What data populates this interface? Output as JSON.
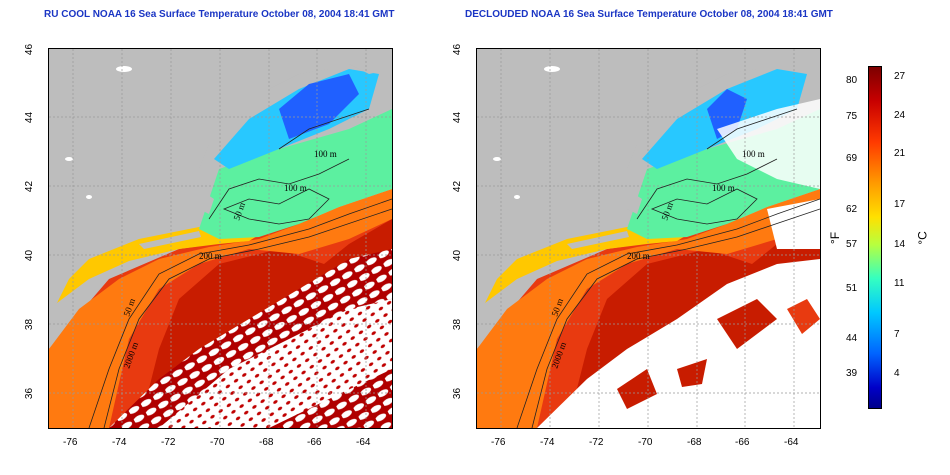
{
  "left_panel": {
    "title": "RU COOL NOAA 16 Sea Surface Temperature October 08, 2004 18:41 GMT",
    "contour_labels": [
      "100 m",
      "100 m",
      "50 m",
      "200 m",
      "50 m",
      "2000 m"
    ]
  },
  "right_panel": {
    "title": "DECLOUDED NOAA 16 Sea Surface Temperature October 08, 2004 18:41 GMT",
    "contour_labels": [
      "100 m",
      "100 m",
      "50 m",
      "200 m",
      "50 m",
      "2000 m"
    ]
  },
  "axes": {
    "lon_ticks": [
      "-76",
      "-74",
      "-72",
      "-70",
      "-68",
      "-66",
      "-64"
    ],
    "lat_ticks": [
      "46",
      "44",
      "42",
      "40",
      "38",
      "36"
    ]
  },
  "colorbar": {
    "fahrenheit_ticks": [
      "80",
      "75",
      "69",
      "62",
      "57",
      "51",
      "44",
      "39"
    ],
    "celsius_ticks": [
      "27",
      "24",
      "21",
      "17",
      "14",
      "11",
      "7",
      "4"
    ],
    "unit_f": "°F",
    "unit_c": "°C"
  },
  "colors": {
    "title": "#1a35c4",
    "land": "#bdbdbd",
    "cloud": "#ffffff"
  }
}
